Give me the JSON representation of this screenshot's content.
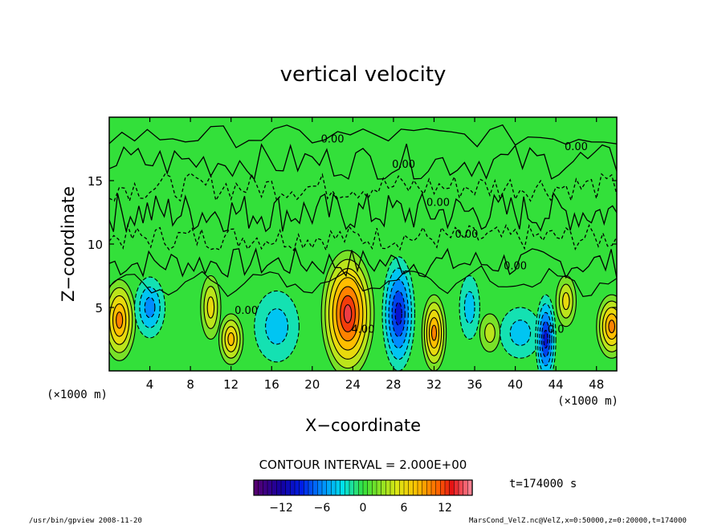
{
  "chart_data": {
    "type": "heatmap",
    "title": "vertical velocity",
    "xlabel": "X−coordinate",
    "ylabel": "Z−coordinate",
    "x_unit_left": "(×1000 m)",
    "x_unit_right": "(×1000 m)",
    "xlim": [
      0,
      50
    ],
    "ylim": [
      0,
      20
    ],
    "x_ticks": [
      4,
      8,
      12,
      16,
      20,
      24,
      28,
      32,
      36,
      40,
      44,
      48
    ],
    "y_ticks": [
      5,
      10,
      15
    ],
    "contour_interval_text": "CONTOUR INTERVAL = 2.000E+00",
    "contour_labels": [
      "0.00",
      "0.00",
      "0.00",
      "0.00",
      "0.00",
      "0.00",
      "0.00",
      "4.00",
      "0.0"
    ],
    "colorbar": {
      "range": [
        -16,
        16
      ],
      "ticks": [
        -12,
        -6,
        0,
        6,
        12
      ],
      "tick_labels": [
        "−12",
        "−6",
        "0",
        "6",
        "12"
      ]
    },
    "cells": [
      {
        "x": 1,
        "z": 4,
        "rx": 1.6,
        "rz": 3.2,
        "w": 11
      },
      {
        "x": 4,
        "z": 5,
        "rx": 1.5,
        "rz": 2.4,
        "w": -7
      },
      {
        "x": 10,
        "z": 5,
        "rx": 1.0,
        "rz": 2.5,
        "w": 7
      },
      {
        "x": 12,
        "z": 2.5,
        "rx": 1.2,
        "rz": 2.0,
        "w": 8
      },
      {
        "x": 16.5,
        "z": 3.5,
        "rx": 2.2,
        "rz": 2.8,
        "w": -5
      },
      {
        "x": 23.5,
        "z": 4.5,
        "rx": 2.6,
        "rz": 5.0,
        "w": 15
      },
      {
        "x": 28.5,
        "z": 4.5,
        "rx": 1.6,
        "rz": 4.5,
        "w": -11
      },
      {
        "x": 32,
        "z": 3,
        "rx": 1.2,
        "rz": 3.0,
        "w": 11
      },
      {
        "x": 35.5,
        "z": 5,
        "rx": 1.0,
        "rz": 2.5,
        "w": -4
      },
      {
        "x": 37.5,
        "z": 3,
        "rx": 1.0,
        "rz": 1.5,
        "w": 5
      },
      {
        "x": 40.5,
        "z": 3,
        "rx": 2.0,
        "rz": 2.0,
        "w": -5
      },
      {
        "x": 43,
        "z": 2.5,
        "rx": 1.0,
        "rz": 3.5,
        "w": -11
      },
      {
        "x": 45,
        "z": 5.5,
        "rx": 1.0,
        "rz": 2.0,
        "w": 7
      },
      {
        "x": 49.5,
        "z": 3.5,
        "rx": 1.5,
        "rz": 2.5,
        "w": 11
      }
    ],
    "time_label": "t=174000 s"
  },
  "footer": {
    "left": "/usr/bin/gpview  2008-11-20",
    "right": "MarsCond_VelZ.nc@VelZ,x=0:50000,z=0:20000,t=174000"
  }
}
